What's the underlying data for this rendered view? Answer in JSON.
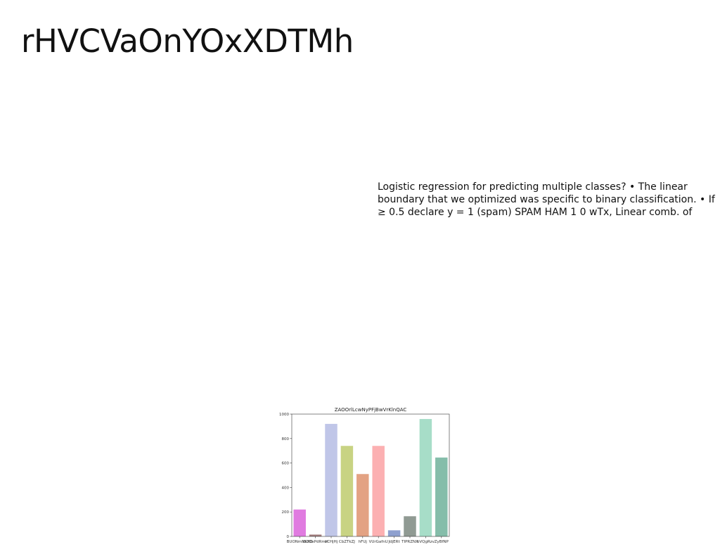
{
  "slide": {
    "title": "rHVCVaOnYOxXDTMh",
    "body": "Logistic regression for predicting multiple classes? • The linear boundary that we optimized was specific to binary classification. • If ≥ 0.5 declare y = 1 (spam) SPAM HAM 1 0 wTx, Linear comb. of"
  },
  "chart_data": {
    "type": "bar",
    "title": "ZAOOrlLcwNyPFjBwVrKlnQAC",
    "xlabel": "",
    "ylabel": "",
    "ylim": [
      0,
      1000
    ],
    "yticks": [
      0,
      200,
      400,
      600,
      800,
      1000
    ],
    "grid": false,
    "categories": [
      "BUONmNKXO",
      "iSZOxPdRmH",
      "oCHjHj",
      "CbZTkZJ",
      "hFUj",
      "VUrGafnU",
      "JdjERt",
      "TIPRZNX",
      "bVQgRzv",
      "ZyBfNP"
    ],
    "values": [
      220,
      15,
      920,
      740,
      510,
      740,
      50,
      165,
      960,
      645
    ],
    "colors": [
      "#e07be0",
      "#a27d7d",
      "#c0c6e8",
      "#c8d383",
      "#e3a283",
      "#fcb0b2",
      "#8ea0cf",
      "#909a93",
      "#a7ddc8",
      "#85bdaa"
    ]
  }
}
